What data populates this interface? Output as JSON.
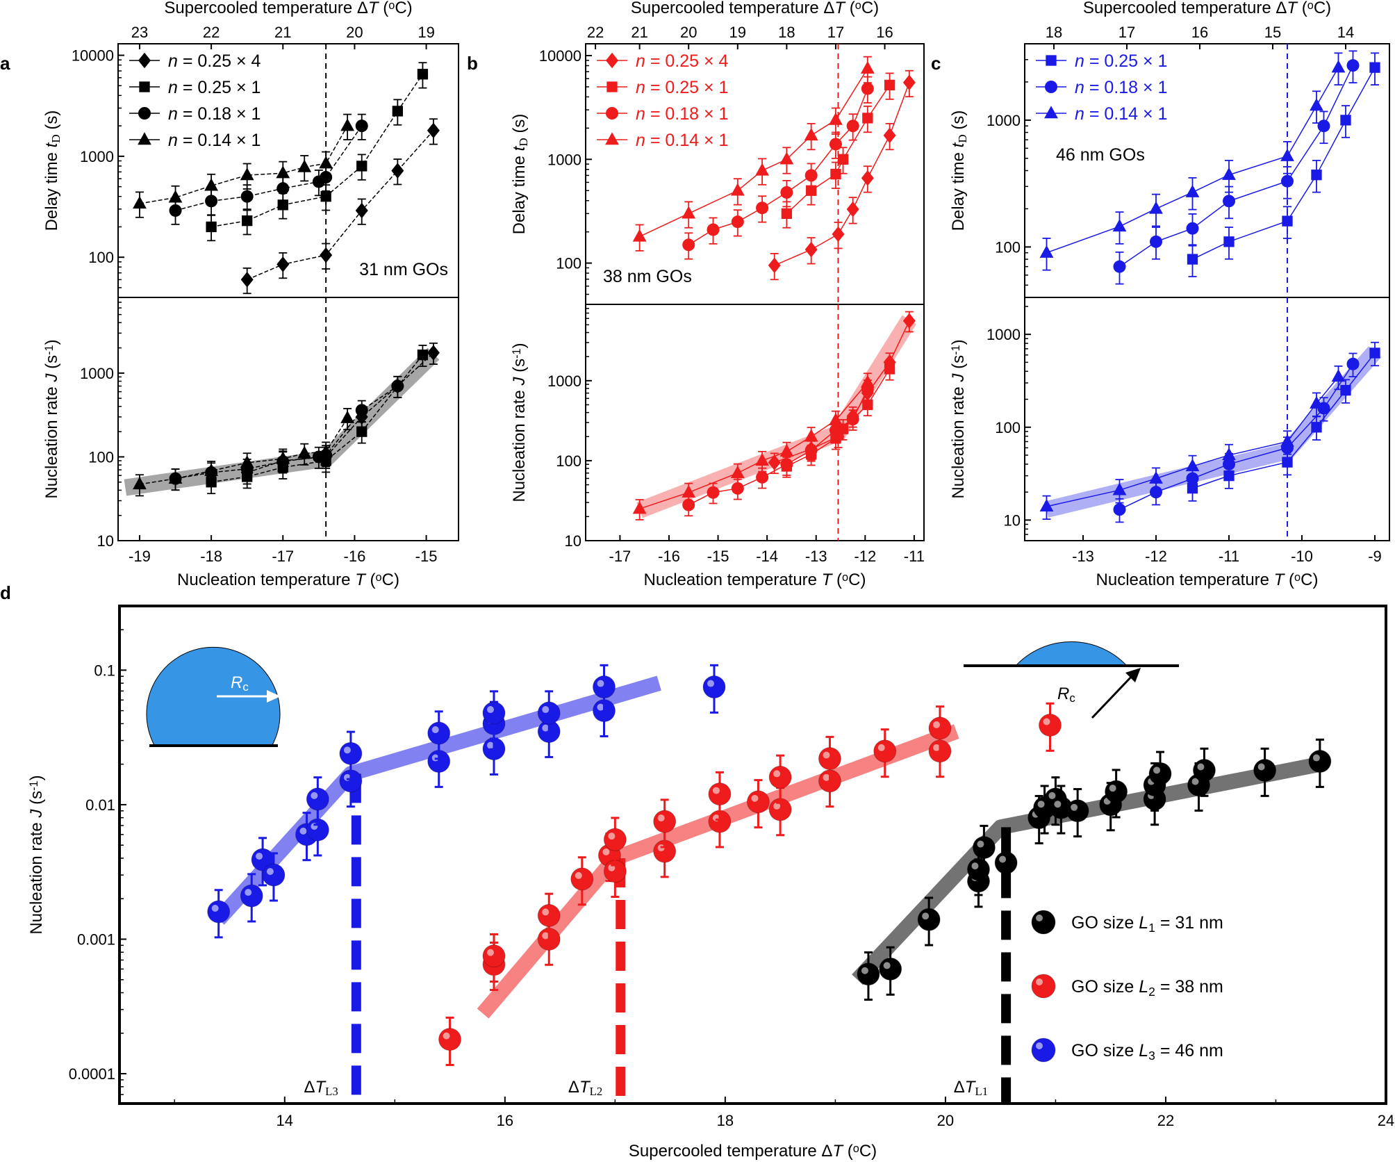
{
  "panel_labels": [
    "a",
    "b",
    "c",
    "d"
  ],
  "chart_data": [
    {
      "id": "a-top",
      "type": "scatter",
      "ylog": true,
      "xlim": [
        -19.3,
        -14.55
      ],
      "ylim": [
        40,
        13000
      ],
      "top_axis_title": "Supercooled temperature ΔT (oC)",
      "top_ticks": [
        {
          "x": -19.0,
          "label": "23"
        },
        {
          "x": -18.0,
          "label": "22"
        },
        {
          "x": -17.0,
          "label": "21"
        },
        {
          "x": -16.0,
          "label": "20"
        },
        {
          "x": -15.0,
          "label": "19"
        }
      ],
      "ylabel": "Delay time tD (s)",
      "yticks": [
        100,
        1000,
        10000
      ],
      "ytick_labels": [
        "100",
        "1000",
        "10000"
      ],
      "vline": -16.4,
      "color": "#000000",
      "annotation": "31 nm GOs",
      "legend": [
        "n = 0.25 × 4",
        "n = 0.25 × 1",
        "n = 0.18 × 1",
        "n = 0.14 × 1"
      ],
      "series": [
        {
          "name": "n = 0.25 × 4",
          "marker": "diamond",
          "x": [
            -17.5,
            -17.0,
            -16.4,
            -15.9,
            -15.4,
            -14.9
          ],
          "y": [
            60,
            85,
            105,
            290,
            720,
            1800
          ]
        },
        {
          "name": "n = 0.25 × 1",
          "marker": "square",
          "x": [
            -18.0,
            -17.5,
            -17.0,
            -16.4,
            -15.9,
            -15.4,
            -15.05
          ],
          "y": [
            200,
            230,
            330,
            400,
            800,
            2800,
            6500
          ]
        },
        {
          "name": "n = 0.18 × 1",
          "marker": "circle",
          "x": [
            -18.5,
            -18.0,
            -17.5,
            -17.0,
            -16.5,
            -16.4,
            -15.9
          ],
          "y": [
            290,
            360,
            400,
            480,
            560,
            620,
            2000
          ]
        },
        {
          "name": "n = 0.14 × 1",
          "marker": "triangle",
          "x": [
            -19.0,
            -18.5,
            -18.0,
            -17.5,
            -17.0,
            -16.7,
            -16.4,
            -16.1
          ],
          "y": [
            340,
            390,
            510,
            650,
            680,
            780,
            850,
            2000
          ]
        }
      ]
    },
    {
      "id": "a-bot",
      "type": "scatter",
      "ylog": true,
      "xlim": [
        -19.3,
        -14.55
      ],
      "ylim": [
        10,
        8000
      ],
      "xlabel": "Nucleation temperature T (oC)",
      "xticks": [
        -19,
        -18,
        -17,
        -16,
        -15
      ],
      "xtick_labels": [
        "-19",
        "-18",
        "-17",
        "-16",
        "-15"
      ],
      "ylabel": "Nucleation rate J (s-1)",
      "yticks": [
        10,
        100,
        1000
      ],
      "ytick_labels": [
        "10",
        "100",
        "1000"
      ],
      "vline": -16.4,
      "color": "#000000",
      "band": {
        "x": [
          -19.2,
          -16.4,
          -14.9
        ],
        "y": [
          43,
          95,
          1700
        ]
      },
      "series": [
        {
          "name": "n = 0.25 × 4",
          "marker": "diamond",
          "x": [
            -17.5,
            -17.0,
            -16.4,
            -15.9,
            -15.4,
            -14.9
          ],
          "y": [
            65,
            90,
            100,
            300,
            700,
            1750
          ]
        },
        {
          "name": "n = 0.25 × 1",
          "marker": "square",
          "x": [
            -18.0,
            -17.5,
            -17.0,
            -16.4,
            -15.9,
            -15.05
          ],
          "y": [
            50,
            58,
            75,
            90,
            200,
            1650
          ]
        },
        {
          "name": "n = 0.18 × 1",
          "marker": "circle",
          "x": [
            -18.5,
            -18.0,
            -17.5,
            -17.0,
            -16.5,
            -16.4,
            -15.9,
            -15.4
          ],
          "y": [
            55,
            65,
            72,
            88,
            100,
            105,
            360,
            700
          ]
        },
        {
          "name": "n = 0.14 × 1",
          "marker": "triangle",
          "x": [
            -19.0,
            -18.5,
            -18.0,
            -17.5,
            -17.0,
            -16.7,
            -16.4,
            -16.1
          ],
          "y": [
            47,
            55,
            68,
            85,
            95,
            110,
            115,
            290
          ]
        }
      ]
    },
    {
      "id": "b-top",
      "type": "scatter",
      "ylog": true,
      "xlim": [
        -17.7,
        -10.8
      ],
      "ylim": [
        40,
        13000
      ],
      "top_axis_title": "Supercooled temperature ΔT (oC)",
      "top_ticks": [
        {
          "x": -17.5,
          "label": "22"
        },
        {
          "x": -16.6,
          "label": "21"
        },
        {
          "x": -15.6,
          "label": "20"
        },
        {
          "x": -14.6,
          "label": "19"
        },
        {
          "x": -13.6,
          "label": "18"
        },
        {
          "x": -12.6,
          "label": "17"
        },
        {
          "x": -11.6,
          "label": "16"
        }
      ],
      "ylabel": "Delay time tD (s)",
      "yticks": [
        100,
        1000,
        10000
      ],
      "ytick_labels": [
        "100",
        "1000",
        "10000"
      ],
      "vline": -12.55,
      "color": "#ee1c1c",
      "annotation": "38 nm GOs",
      "legend": [
        "n = 0.25 × 4",
        "n = 0.25 × 1",
        "n = 0.18 × 1",
        "n = 0.14 × 1"
      ],
      "series": [
        {
          "name": "n = 0.25 × 4",
          "marker": "diamond",
          "x": [
            -13.85,
            -13.1,
            -12.55,
            -12.25,
            -11.95,
            -11.5,
            -11.1
          ],
          "y": [
            95,
            135,
            190,
            330,
            660,
            1700,
            5500
          ]
        },
        {
          "name": "n = 0.25 × 1",
          "marker": "square",
          "x": [
            -13.6,
            -13.1,
            -12.6,
            -12.45,
            -11.95,
            -11.5
          ],
          "y": [
            300,
            500,
            720,
            1000,
            2500,
            5200
          ]
        },
        {
          "name": "n = 0.18 × 1",
          "marker": "circle",
          "x": [
            -15.6,
            -15.1,
            -14.6,
            -14.1,
            -13.6,
            -13.1,
            -12.6,
            -12.25,
            -11.95
          ],
          "y": [
            150,
            210,
            250,
            340,
            480,
            700,
            1400,
            2100,
            4800
          ]
        },
        {
          "name": "n = 0.14 × 1",
          "marker": "triangle",
          "x": [
            -16.6,
            -15.6,
            -14.6,
            -14.1,
            -13.6,
            -13.1,
            -12.6,
            -11.95
          ],
          "y": [
            180,
            300,
            500,
            780,
            1000,
            1700,
            2400,
            7500
          ]
        }
      ]
    },
    {
      "id": "b-bot",
      "type": "scatter",
      "ylog": true,
      "xlim": [
        -17.7,
        -10.8
      ],
      "ylim": [
        10,
        9000
      ],
      "xlabel": "Nucleation temperature T (oC)",
      "xticks": [
        -17,
        -16,
        -15,
        -14,
        -13,
        -12,
        -11
      ],
      "xtick_labels": [
        "-17",
        "-16",
        "-15",
        "-14",
        "-13",
        "-12",
        "-11"
      ],
      "ylabel": "Nucleation rate J (s-1)",
      "yticks": [
        10,
        100,
        1000
      ],
      "ytick_labels": [
        "10",
        "100",
        "1000"
      ],
      "vline": -12.55,
      "color": "#ee1c1c",
      "band": {
        "x": [
          -16.6,
          -12.55,
          -11.1
        ],
        "y": [
          24,
          220,
          5800
        ]
      },
      "series": [
        {
          "name": "n = 0.25 × 4",
          "marker": "diamond",
          "x": [
            -13.85,
            -13.1,
            -12.55,
            -12.25,
            -11.95,
            -11.5,
            -11.1
          ],
          "y": [
            95,
            140,
            200,
            360,
            700,
            1700,
            5600
          ]
        },
        {
          "name": "n = 0.25 × 1",
          "marker": "square",
          "x": [
            -13.6,
            -13.1,
            -12.6,
            -12.45,
            -11.95,
            -11.5
          ],
          "y": [
            85,
            120,
            190,
            250,
            500,
            1400
          ]
        },
        {
          "name": "n = 0.18 × 1",
          "marker": "circle",
          "x": [
            -15.6,
            -15.1,
            -14.6,
            -14.1,
            -13.6,
            -13.1,
            -12.6,
            -12.25,
            -11.95
          ],
          "y": [
            28,
            40,
            45,
            62,
            90,
            135,
            240,
            330,
            780
          ]
        },
        {
          "name": "n = 0.14 × 1",
          "marker": "triangle",
          "x": [
            -16.6,
            -15.6,
            -14.6,
            -14.1,
            -13.6,
            -13.1,
            -12.6,
            -11.95
          ],
          "y": [
            25,
            40,
            70,
            100,
            130,
            200,
            320,
            950
          ]
        }
      ]
    },
    {
      "id": "c-top",
      "type": "scatter",
      "ylog": true,
      "xlim": [
        -13.8,
        -8.8
      ],
      "ylim": [
        40,
        4000
      ],
      "top_axis_title": "Supercooled temperature ΔT (oC)",
      "top_ticks": [
        {
          "x": -13.4,
          "label": "18"
        },
        {
          "x": -12.4,
          "label": "17"
        },
        {
          "x": -11.4,
          "label": "16"
        },
        {
          "x": -10.4,
          "label": "15"
        },
        {
          "x": -9.4,
          "label": "14"
        }
      ],
      "ylabel": "Delay time tD (s)",
      "yticks": [
        100,
        1000
      ],
      "ytick_labels": [
        "100",
        "1000"
      ],
      "vline": -10.2,
      "color": "#1a1ae6",
      "annotation": "46 nm GOs",
      "legend": [
        "n = 0.25 × 1",
        "n = 0.18 × 1",
        "n = 0.14 × 1"
      ],
      "series": [
        {
          "name": "n = 0.25 × 1",
          "marker": "square",
          "x": [
            -11.5,
            -11.0,
            -10.2,
            -9.8,
            -9.4,
            -9.0
          ],
          "y": [
            80,
            110,
            160,
            370,
            1000,
            2600
          ]
        },
        {
          "name": "n = 0.18 × 1",
          "marker": "circle",
          "x": [
            -12.5,
            -12.0,
            -11.5,
            -11.0,
            -10.2,
            -9.7,
            -9.3
          ],
          "y": [
            70,
            110,
            140,
            230,
            330,
            900,
            2700
          ]
        },
        {
          "name": "n = 0.14 × 1",
          "marker": "triangle",
          "x": [
            -13.5,
            -12.5,
            -12.0,
            -11.5,
            -11.0,
            -10.2,
            -9.8,
            -9.5
          ],
          "y": [
            90,
            145,
            200,
            270,
            370,
            520,
            1300,
            2600
          ]
        }
      ]
    },
    {
      "id": "c-bot",
      "type": "scatter",
      "ylog": true,
      "xlim": [
        -13.8,
        -8.8
      ],
      "ylim": [
        6,
        2500
      ],
      "xlabel": "Nucleation temperature T (oC)",
      "xticks": [
        -13,
        -12,
        -11,
        -10,
        -9
      ],
      "xtick_labels": [
        "-13",
        "-12",
        "-11",
        "-10",
        "-9"
      ],
      "ylabel": "Nucleation rate J (s-1)",
      "yticks": [
        10,
        100,
        1000
      ],
      "ytick_labels": [
        "10",
        "100",
        "1000"
      ],
      "vline": -10.2,
      "color": "#1a1ae6",
      "band": {
        "x": [
          -13.5,
          -10.2,
          -9.0
        ],
        "y": [
          13,
          55,
          650
        ]
      },
      "series": [
        {
          "name": "n = 0.25 × 1",
          "marker": "square",
          "x": [
            -11.5,
            -11.0,
            -10.2,
            -9.8,
            -9.4,
            -9.0
          ],
          "y": [
            22,
            30,
            42,
            100,
            250,
            630
          ]
        },
        {
          "name": "n = 0.18 × 1",
          "marker": "circle",
          "x": [
            -12.5,
            -12.0,
            -11.5,
            -11.0,
            -10.2,
            -9.7,
            -9.3
          ],
          "y": [
            13,
            20,
            28,
            40,
            60,
            160,
            480
          ]
        },
        {
          "name": "n = 0.14 × 1",
          "marker": "triangle",
          "x": [
            -13.5,
            -12.5,
            -12.0,
            -11.5,
            -11.0,
            -10.2,
            -9.8,
            -9.5
          ],
          "y": [
            14,
            21,
            28,
            38,
            50,
            70,
            180,
            350
          ]
        }
      ]
    },
    {
      "id": "d",
      "type": "scatter",
      "ylog": true,
      "xlim": [
        12.5,
        24.0
      ],
      "ylim": [
        6e-05,
        0.3
      ],
      "xlabel": "Supercooled temperature ΔT (oC)",
      "xticks": [
        14,
        16,
        18,
        20,
        22,
        24
      ],
      "xtick_labels": [
        "14",
        "16",
        "18",
        "20",
        "22",
        "24"
      ],
      "ylabel": "Nucleation rate J (s-1)",
      "yticks": [
        0.0001,
        0.001,
        0.01,
        0.1
      ],
      "ytick_labels": [
        "0.0001",
        "0.001",
        "0.01",
        "0.1"
      ],
      "dashed_lines": [
        {
          "x": 14.65,
          "label": "ΔTL3",
          "color": "#1a1ae6"
        },
        {
          "x": 17.05,
          "label": "ΔTL2",
          "color": "#ee1c1c"
        },
        {
          "x": 20.55,
          "label": "ΔTL1",
          "color": "#000000"
        }
      ],
      "inset_labels": [
        "Rc",
        "Rc"
      ],
      "legend": [
        "GO size L1 = 31 nm",
        "GO size L2 = 38 nm",
        "GO size L3 = 46 nm"
      ],
      "series": [
        {
          "name": "GO size L1 = 31 nm",
          "color": "#000000",
          "x": [
            19.3,
            19.5,
            19.85,
            20.3,
            20.3,
            20.35,
            20.55,
            20.85,
            20.9,
            21.0,
            21.05,
            21.2,
            21.5,
            21.55,
            21.9,
            21.9,
            21.95,
            22.3,
            22.35,
            22.9,
            23.4
          ],
          "y": [
            0.00055,
            0.0006,
            0.0014,
            0.0027,
            0.0033,
            0.0048,
            0.0037,
            0.008,
            0.0095,
            0.011,
            0.0095,
            0.009,
            0.01,
            0.0125,
            0.011,
            0.014,
            0.017,
            0.014,
            0.018,
            0.018,
            0.021
          ],
          "fit": {
            "x": [
              19.2,
              20.5,
              23.4
            ],
            "y": [
              0.0005,
              0.0068,
              0.02
            ]
          }
        },
        {
          "name": "GO size L2 = 38 nm",
          "color": "#ee1c1c",
          "x": [
            15.5,
            15.9,
            15.9,
            16.4,
            16.4,
            16.7,
            16.95,
            17.0,
            17.0,
            17.45,
            17.45,
            17.95,
            17.95,
            18.3,
            18.5,
            18.5,
            18.95,
            18.95,
            19.45,
            19.95,
            19.95,
            20.95
          ],
          "y": [
            0.00018,
            0.00065,
            0.00075,
            0.001,
            0.0015,
            0.0028,
            0.0042,
            0.0032,
            0.0055,
            0.0045,
            0.0075,
            0.0075,
            0.012,
            0.0105,
            0.0092,
            0.016,
            0.015,
            0.022,
            0.025,
            0.025,
            0.037,
            0.039
          ],
          "fit": {
            "x": [
              15.8,
              17.0,
              20.1
            ],
            "y": [
              0.00028,
              0.004,
              0.035
            ]
          }
        },
        {
          "name": "GO size L3 = 46 nm",
          "color": "#1a1ae6",
          "x": [
            13.4,
            13.7,
            13.8,
            13.9,
            14.2,
            14.3,
            14.3,
            14.6,
            14.6,
            15.4,
            15.4,
            15.9,
            15.9,
            15.9,
            16.4,
            16.4,
            16.9,
            16.9,
            17.9
          ],
          "y": [
            0.0016,
            0.0021,
            0.0039,
            0.003,
            0.006,
            0.0065,
            0.011,
            0.015,
            0.024,
            0.021,
            0.034,
            0.026,
            0.04,
            0.048,
            0.035,
            0.048,
            0.05,
            0.075,
            0.075
          ],
          "fit": {
            "x": [
              13.4,
              14.6,
              17.4
            ],
            "y": [
              0.0014,
              0.017,
              0.08
            ]
          }
        }
      ]
    }
  ]
}
